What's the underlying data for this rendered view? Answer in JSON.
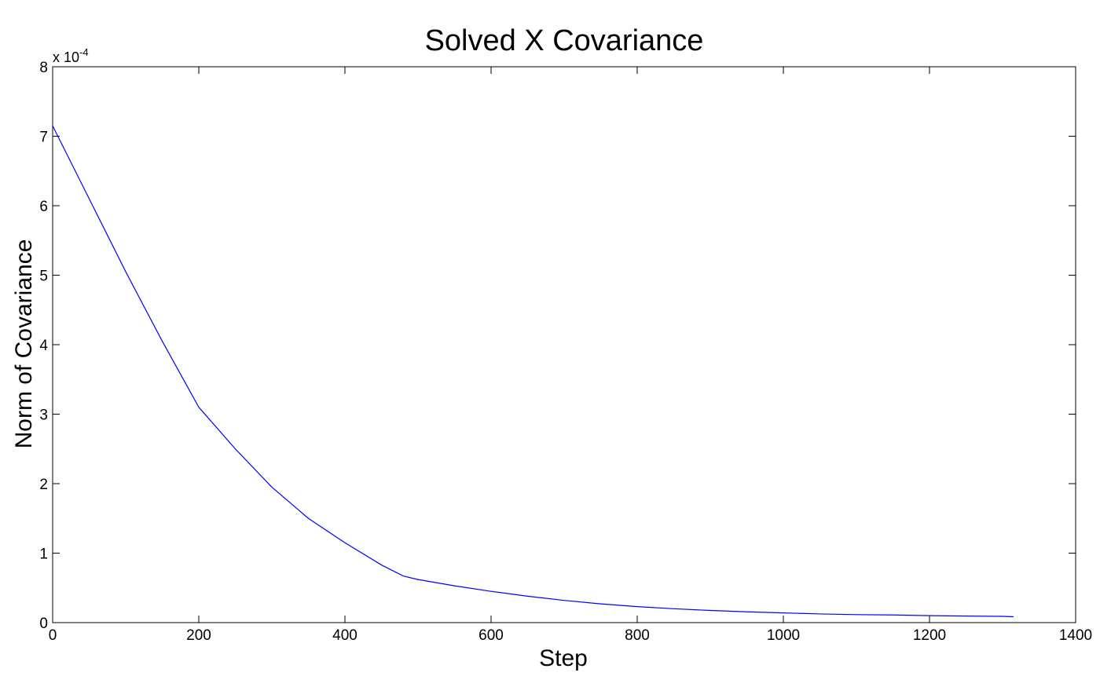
{
  "chart_data": {
    "type": "line",
    "title": "Solved X Covariance",
    "xlabel": "Step",
    "ylabel": "Norm of Covariance",
    "exponent_prefix": "x 10",
    "exponent_power": "-4",
    "xlim": [
      0,
      1400
    ],
    "ylim": [
      0,
      8
    ],
    "x_ticks": [
      0,
      200,
      400,
      600,
      800,
      1000,
      1200,
      1400
    ],
    "y_ticks": [
      0,
      1,
      2,
      3,
      4,
      5,
      6,
      7,
      8
    ],
    "grid": false,
    "line_color": "#0000ff",
    "series": [
      {
        "x": [
          0,
          50,
          100,
          150,
          200,
          250,
          300,
          350,
          400,
          450,
          480,
          500,
          550,
          600,
          650,
          700,
          750,
          800,
          850,
          900,
          950,
          1000,
          1050,
          1100,
          1150,
          1200,
          1250,
          1300,
          1315
        ],
        "values": [
          7.15,
          6.1,
          5.05,
          4.05,
          3.1,
          2.5,
          1.95,
          1.5,
          1.15,
          0.83,
          0.67,
          0.62,
          0.53,
          0.45,
          0.38,
          0.32,
          0.27,
          0.23,
          0.2,
          0.175,
          0.155,
          0.14,
          0.125,
          0.115,
          0.11,
          0.1,
          0.095,
          0.09,
          0.085
        ]
      }
    ]
  }
}
